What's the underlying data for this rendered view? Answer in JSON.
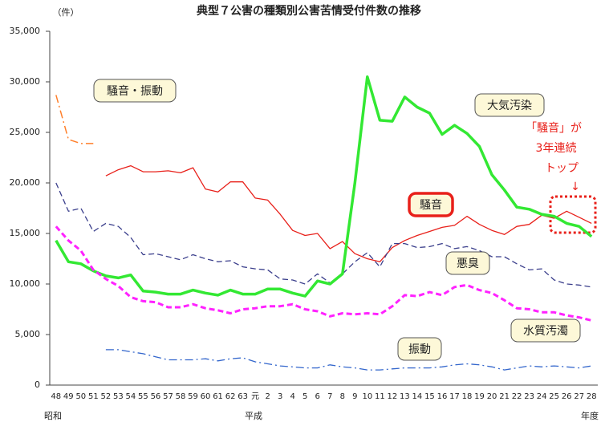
{
  "chart_data": {
    "type": "line",
    "title": "典型７公害の種類別公害苦情受付件数の推移",
    "y_unit": "（件）",
    "era_labels": [
      "昭和",
      "平成"
    ],
    "x_label": "年度",
    "annotation": [
      "「騒音」が",
      "3年連続",
      "トップ"
    ],
    "annotation_arrow": "↓",
    "categories": [
      "48",
      "49",
      "50",
      "51",
      "52",
      "53",
      "54",
      "55",
      "56",
      "57",
      "58",
      "59",
      "60",
      "61",
      "62",
      "63",
      "元",
      "2",
      "3",
      "4",
      "5",
      "6",
      "7",
      "8",
      "9",
      "10",
      "11",
      "12",
      "13",
      "14",
      "15",
      "16",
      "17",
      "18",
      "19",
      "20",
      "21",
      "22",
      "23",
      "24",
      "25",
      "26",
      "27",
      "28"
    ],
    "ylim": [
      0,
      35000
    ],
    "yticks": [
      0,
      {
        "value": 5000,
        "label": "5,000"
      },
      {
        "value": 10000,
        "label": "10,000"
      },
      {
        "value": 15000,
        "label": "15,000"
      },
      {
        "value": 20000,
        "label": "20,000"
      },
      {
        "value": 25000,
        "label": "25,000"
      },
      {
        "value": 30000,
        "label": "30,000"
      },
      {
        "value": 35000,
        "label": "35,000"
      }
    ],
    "grid": false,
    "series": [
      {
        "name": "騒音・振動",
        "color": "#ff7f2a",
        "line_style": "dashdot",
        "width": 1.5,
        "values": [
          28700,
          24300,
          23900,
          23900,
          null,
          null,
          null,
          null,
          null,
          null,
          null,
          null,
          null,
          null,
          null,
          null,
          null,
          null,
          null,
          null,
          null,
          null,
          null,
          null,
          null,
          null,
          null,
          null,
          null,
          null,
          null,
          null,
          null,
          null,
          null,
          null,
          null,
          null,
          null,
          null,
          null,
          null,
          null,
          null
        ]
      },
      {
        "name": "騒音",
        "color": "#e8201a",
        "line_style": "solid",
        "width": 1.3,
        "values": [
          null,
          null,
          null,
          null,
          20700,
          21300,
          21700,
          21100,
          21100,
          21200,
          21000,
          21500,
          19400,
          19100,
          20100,
          20100,
          18500,
          18300,
          16900,
          15300,
          14800,
          15000,
          13500,
          14200,
          13000,
          12500,
          12200,
          13600,
          14300,
          14800,
          15200,
          15600,
          15800,
          16700,
          15900,
          15300,
          14900,
          15700,
          15900,
          16800,
          16500,
          17200,
          16600,
          16000
        ]
      },
      {
        "name": "悪臭",
        "color": "#3b3f8c",
        "line_style": "dashed",
        "width": 1.3,
        "values": [
          20000,
          17200,
          17500,
          15200,
          16000,
          15700,
          14600,
          12900,
          13000,
          12700,
          12400,
          12900,
          12500,
          12200,
          12300,
          11700,
          11500,
          11400,
          10500,
          10400,
          10000,
          11000,
          10100,
          11000,
          12200,
          13100,
          11700,
          14000,
          14000,
          13600,
          13700,
          14000,
          13500,
          13700,
          13300,
          12700,
          12700,
          12000,
          11400,
          11500,
          10400,
          10000,
          9900,
          9700
        ]
      },
      {
        "name": "大気汚染",
        "color": "#33e833",
        "line_style": "solid",
        "width": 3.5,
        "values": [
          14300,
          12200,
          12000,
          11300,
          10800,
          10600,
          10900,
          9300,
          9200,
          9000,
          9000,
          9400,
          9100,
          8900,
          9400,
          9000,
          9000,
          9500,
          9500,
          9100,
          8800,
          10300,
          10000,
          11000,
          20000,
          30500,
          26200,
          26100,
          28500,
          27500,
          26900,
          24800,
          25700,
          24900,
          23600,
          20800,
          19300,
          17600,
          17400,
          16900,
          16700,
          16000,
          15700,
          14700
        ]
      },
      {
        "name": "水質汚濁",
        "color": "#ff22ff",
        "line_style": "dashed",
        "width": 3,
        "values": [
          15700,
          14300,
          13300,
          11400,
          10500,
          9800,
          8700,
          8300,
          8200,
          7700,
          7700,
          8000,
          7600,
          7400,
          7100,
          7500,
          7600,
          7800,
          7800,
          8000,
          7500,
          7300,
          6800,
          7100,
          7000,
          7100,
          7000,
          7800,
          8900,
          8800,
          9200,
          8900,
          9700,
          9900,
          9400,
          9100,
          8400,
          7600,
          7500,
          7200,
          7200,
          6900,
          6700,
          6400
        ]
      },
      {
        "name": "振動",
        "color": "#3366cc",
        "line_style": "dashdot",
        "width": 1.3,
        "values": [
          null,
          null,
          null,
          null,
          3500,
          3500,
          3300,
          3100,
          2800,
          2500,
          2500,
          2500,
          2600,
          2400,
          2600,
          2700,
          2300,
          2100,
          1900,
          1800,
          1700,
          1700,
          2000,
          1800,
          1700,
          1500,
          1500,
          1600,
          1700,
          1700,
          1700,
          1800,
          2000,
          2100,
          2000,
          1800,
          1500,
          1700,
          1900,
          1800,
          1900,
          1800,
          1700,
          1900
        ]
      }
    ]
  }
}
